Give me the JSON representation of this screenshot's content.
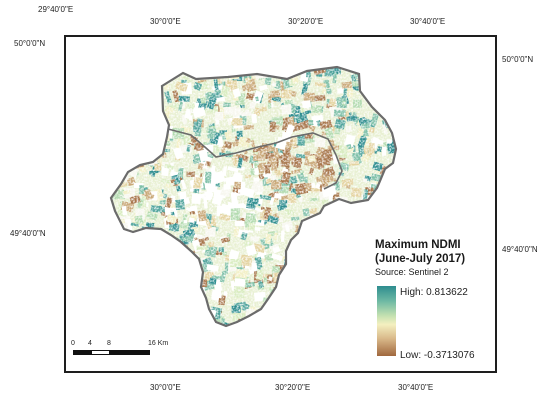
{
  "coords": {
    "top": [
      "29°40'0\"E",
      "30°0'0\"E",
      "30°20'0\"E",
      "30°40'0\"E"
    ],
    "bottom": [
      "30°0'0\"E",
      "30°20'0\"E",
      "30°40'0\"E"
    ],
    "left": [
      "50°0'0\"N",
      "49°40'0\"N"
    ],
    "right": [
      "50°0'0\"N",
      "49°40'0\"N"
    ]
  },
  "legend": {
    "title_line1": "Maximum NDMI",
    "title_line2": "(June-July 2017)",
    "source": "Source: Sentinel 2",
    "high": "High: 0.813622",
    "low": "Low: -0.3713076"
  },
  "scale": {
    "ticks": [
      "0",
      "4",
      "8",
      "16 Km"
    ]
  },
  "colors": {
    "frame": "#1e1e1e",
    "boundary": "#6b6b6b",
    "high": "#2e8d8f",
    "mid": "#f4f0c0",
    "low": "#a0683e"
  }
}
